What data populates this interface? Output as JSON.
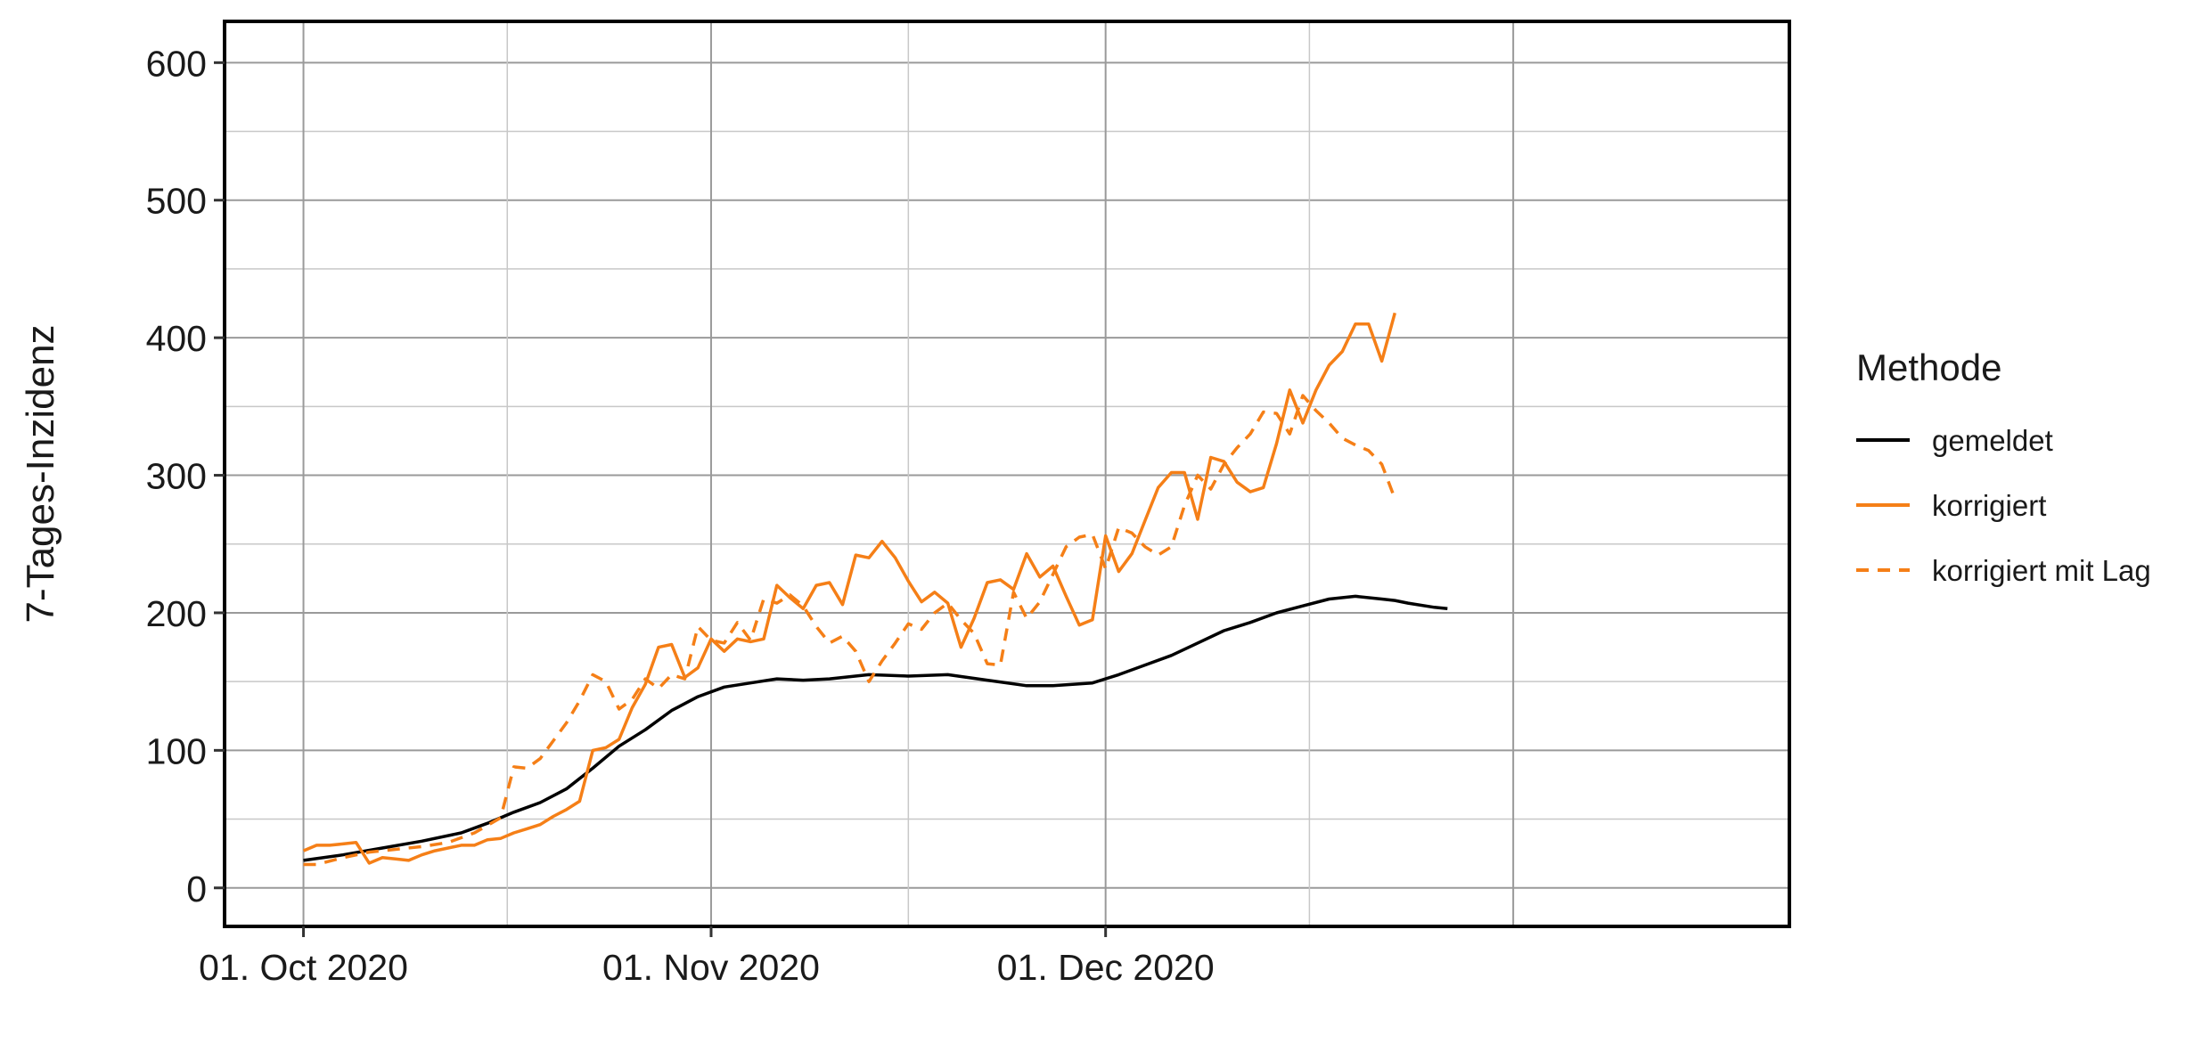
{
  "chart_data": {
    "type": "line",
    "xlabel": "",
    "ylabel": "7-Tages-Inzidenz",
    "ylim": [
      -28,
      630
    ],
    "xlim": [
      "2020-09-25",
      "2021-01-22"
    ],
    "y_ticks": [
      0,
      100,
      200,
      300,
      400,
      500,
      600
    ],
    "x_ticks": [
      {
        "date": "2020-10-01",
        "label": "01. Oct 2020"
      },
      {
        "date": "2020-11-01",
        "label": "01. Nov 2020"
      },
      {
        "date": "2020-12-01",
        "label": "01. Dec 2020"
      }
    ],
    "grid": true,
    "legend": {
      "title": "Methode",
      "placement": "right",
      "entries": [
        {
          "label": "gemeldet",
          "color": "#000000",
          "dash": "solid"
        },
        {
          "label": "korrigiert",
          "color": "#f57f17",
          "dash": "solid"
        },
        {
          "label": "korrigiert mit Lag",
          "color": "#f57f17",
          "dash": "dashed"
        }
      ]
    },
    "series": [
      {
        "name": "gemeldet",
        "color": "#000000",
        "dash": "solid",
        "points": [
          [
            "2020-10-01",
            20
          ],
          [
            "2020-10-04",
            24
          ],
          [
            "2020-10-07",
            29
          ],
          [
            "2020-10-10",
            34
          ],
          [
            "2020-10-13",
            40
          ],
          [
            "2020-10-15",
            47
          ],
          [
            "2020-10-17",
            55
          ],
          [
            "2020-10-19",
            62
          ],
          [
            "2020-10-21",
            72
          ],
          [
            "2020-10-23",
            87
          ],
          [
            "2020-10-25",
            103
          ],
          [
            "2020-10-27",
            115
          ],
          [
            "2020-10-29",
            129
          ],
          [
            "2020-10-31",
            139
          ],
          [
            "2020-11-02",
            146
          ],
          [
            "2020-11-04",
            149
          ],
          [
            "2020-11-06",
            152
          ],
          [
            "2020-11-08",
            151
          ],
          [
            "2020-11-10",
            152
          ],
          [
            "2020-11-13",
            155
          ],
          [
            "2020-11-16",
            154
          ],
          [
            "2020-11-19",
            155
          ],
          [
            "2020-11-22",
            151
          ],
          [
            "2020-11-25",
            147
          ],
          [
            "2020-11-27",
            147
          ],
          [
            "2020-11-30",
            149
          ],
          [
            "2020-12-02",
            155
          ],
          [
            "2020-12-04",
            162
          ],
          [
            "2020-12-06",
            169
          ],
          [
            "2020-12-08",
            178
          ],
          [
            "2020-12-10",
            187
          ],
          [
            "2020-12-12",
            193
          ],
          [
            "2020-12-14",
            200
          ],
          [
            "2020-12-16",
            205
          ],
          [
            "2020-12-18",
            210
          ],
          [
            "2020-12-20",
            212
          ],
          [
            "2020-12-22",
            210
          ],
          [
            "2020-12-23",
            209
          ],
          [
            "2020-12-24",
            207
          ],
          [
            "2020-12-26",
            204
          ],
          [
            "2020-12-27",
            203
          ]
        ]
      },
      {
        "name": "korrigiert",
        "color": "#f57f17",
        "dash": "solid",
        "points": [
          [
            "2020-10-01",
            27
          ],
          [
            "2020-10-02",
            31
          ],
          [
            "2020-10-03",
            31
          ],
          [
            "2020-10-04",
            32
          ],
          [
            "2020-10-05",
            33
          ],
          [
            "2020-10-06",
            18
          ],
          [
            "2020-10-07",
            22
          ],
          [
            "2020-10-08",
            21
          ],
          [
            "2020-10-09",
            20
          ],
          [
            "2020-10-10",
            24
          ],
          [
            "2020-10-11",
            27
          ],
          [
            "2020-10-12",
            29
          ],
          [
            "2020-10-13",
            31
          ],
          [
            "2020-10-14",
            31
          ],
          [
            "2020-10-15",
            35
          ],
          [
            "2020-10-16",
            36
          ],
          [
            "2020-10-17",
            40
          ],
          [
            "2020-10-18",
            43
          ],
          [
            "2020-10-19",
            46
          ],
          [
            "2020-10-20",
            52
          ],
          [
            "2020-10-21",
            57
          ],
          [
            "2020-10-22",
            63
          ],
          [
            "2020-10-23",
            100
          ],
          [
            "2020-10-24",
            102
          ],
          [
            "2020-10-25",
            108
          ],
          [
            "2020-10-26",
            131
          ],
          [
            "2020-10-27",
            148
          ],
          [
            "2020-10-28",
            175
          ],
          [
            "2020-10-29",
            177
          ],
          [
            "2020-10-30",
            153
          ],
          [
            "2020-10-31",
            160
          ],
          [
            "2020-11-01",
            181
          ],
          [
            "2020-11-02",
            172
          ],
          [
            "2020-11-03",
            181
          ],
          [
            "2020-11-04",
            179
          ],
          [
            "2020-11-05",
            181
          ],
          [
            "2020-11-06",
            220
          ],
          [
            "2020-11-07",
            211
          ],
          [
            "2020-11-08",
            203
          ],
          [
            "2020-11-09",
            220
          ],
          [
            "2020-11-10",
            222
          ],
          [
            "2020-11-11",
            206
          ],
          [
            "2020-11-12",
            242
          ],
          [
            "2020-11-13",
            240
          ],
          [
            "2020-11-14",
            252
          ],
          [
            "2020-11-15",
            240
          ],
          [
            "2020-11-16",
            223
          ],
          [
            "2020-11-17",
            208
          ],
          [
            "2020-11-18",
            215
          ],
          [
            "2020-11-19",
            207
          ],
          [
            "2020-11-20",
            175
          ],
          [
            "2020-11-21",
            196
          ],
          [
            "2020-11-22",
            222
          ],
          [
            "2020-11-23",
            224
          ],
          [
            "2020-11-24",
            217
          ],
          [
            "2020-11-25",
            243
          ],
          [
            "2020-11-26",
            226
          ],
          [
            "2020-11-27",
            234
          ],
          [
            "2020-11-28",
            212
          ],
          [
            "2020-11-29",
            191
          ],
          [
            "2020-11-30",
            195
          ],
          [
            "2020-12-01",
            256
          ],
          [
            "2020-12-02",
            230
          ],
          [
            "2020-12-03",
            243
          ],
          [
            "2020-12-04",
            267
          ],
          [
            "2020-12-05",
            291
          ],
          [
            "2020-12-06",
            302
          ],
          [
            "2020-12-07",
            302
          ],
          [
            "2020-12-08",
            268
          ],
          [
            "2020-12-09",
            313
          ],
          [
            "2020-12-10",
            310
          ],
          [
            "2020-12-11",
            295
          ],
          [
            "2020-12-12",
            288
          ],
          [
            "2020-12-13",
            291
          ],
          [
            "2020-12-14",
            323
          ],
          [
            "2020-12-15",
            362
          ],
          [
            "2020-12-16",
            338
          ],
          [
            "2020-12-17",
            362
          ],
          [
            "2020-12-18",
            380
          ],
          [
            "2020-12-19",
            390
          ],
          [
            "2020-12-20",
            410
          ],
          [
            "2020-12-21",
            410
          ],
          [
            "2020-12-22",
            383
          ],
          [
            "2020-12-23",
            418
          ]
        ]
      },
      {
        "name": "korrigiert mit Lag",
        "color": "#f57f17",
        "dash": "dashed",
        "points": [
          [
            "2020-10-01",
            17
          ],
          [
            "2020-10-02",
            17
          ],
          [
            "2020-10-04",
            22
          ],
          [
            "2020-10-06",
            26
          ],
          [
            "2020-10-08",
            28
          ],
          [
            "2020-10-10",
            30
          ],
          [
            "2020-10-12",
            33
          ],
          [
            "2020-10-14",
            40
          ],
          [
            "2020-10-16",
            51
          ],
          [
            "2020-10-17",
            88
          ],
          [
            "2020-10-18",
            87
          ],
          [
            "2020-10-19",
            94
          ],
          [
            "2020-10-20",
            107
          ],
          [
            "2020-10-21",
            120
          ],
          [
            "2020-10-22",
            136
          ],
          [
            "2020-10-23",
            155
          ],
          [
            "2020-10-24",
            150
          ],
          [
            "2020-10-25",
            130
          ],
          [
            "2020-10-26",
            137
          ],
          [
            "2020-10-27",
            152
          ],
          [
            "2020-10-28",
            145
          ],
          [
            "2020-10-29",
            155
          ],
          [
            "2020-10-30",
            152
          ],
          [
            "2020-10-31",
            190
          ],
          [
            "2020-11-01",
            180
          ],
          [
            "2020-11-02",
            178
          ],
          [
            "2020-11-03",
            193
          ],
          [
            "2020-11-04",
            180
          ],
          [
            "2020-11-05",
            210
          ],
          [
            "2020-11-06",
            207
          ],
          [
            "2020-11-07",
            213
          ],
          [
            "2020-11-08",
            205
          ],
          [
            "2020-11-09",
            190
          ],
          [
            "2020-11-10",
            178
          ],
          [
            "2020-11-11",
            183
          ],
          [
            "2020-11-12",
            172
          ],
          [
            "2020-11-13",
            150
          ],
          [
            "2020-11-14",
            165
          ],
          [
            "2020-11-15",
            178
          ],
          [
            "2020-11-16",
            192
          ],
          [
            "2020-11-17",
            188
          ],
          [
            "2020-11-18",
            200
          ],
          [
            "2020-11-19",
            207
          ],
          [
            "2020-11-20",
            195
          ],
          [
            "2020-11-21",
            185
          ],
          [
            "2020-11-22",
            163
          ],
          [
            "2020-11-23",
            162
          ],
          [
            "2020-11-24",
            215
          ],
          [
            "2020-11-25",
            196
          ],
          [
            "2020-11-26",
            208
          ],
          [
            "2020-11-27",
            228
          ],
          [
            "2020-11-28",
            248
          ],
          [
            "2020-11-29",
            255
          ],
          [
            "2020-11-30",
            257
          ],
          [
            "2020-12-01",
            232
          ],
          [
            "2020-12-02",
            262
          ],
          [
            "2020-12-03",
            258
          ],
          [
            "2020-12-04",
            248
          ],
          [
            "2020-12-05",
            242
          ],
          [
            "2020-12-06",
            248
          ],
          [
            "2020-12-07",
            278
          ],
          [
            "2020-12-08",
            300
          ],
          [
            "2020-12-09",
            290
          ],
          [
            "2020-12-10",
            308
          ],
          [
            "2020-12-11",
            320
          ],
          [
            "2020-12-12",
            330
          ],
          [
            "2020-12-13",
            346
          ],
          [
            "2020-12-14",
            345
          ],
          [
            "2020-12-15",
            330
          ],
          [
            "2020-12-16",
            358
          ],
          [
            "2020-12-17",
            347
          ],
          [
            "2020-12-18",
            338
          ],
          [
            "2020-12-19",
            327
          ],
          [
            "2020-12-20",
            322
          ],
          [
            "2020-12-21",
            318
          ],
          [
            "2020-12-22",
            308
          ],
          [
            "2020-12-23",
            283
          ]
        ]
      }
    ]
  }
}
